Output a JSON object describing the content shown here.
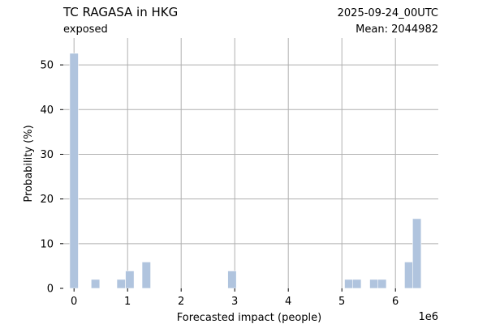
{
  "header": {
    "title": "TC RAGASA in HKG",
    "subtitle": "exposed",
    "run_label": "2025-09-24_00UTC",
    "run_color": "#ff0000",
    "mean_label": "Mean: 2044982"
  },
  "chart_data": {
    "type": "bar",
    "xlabel": "Forecasted impact (people)",
    "ylabel": "Probability (%)",
    "x_offset_label": "1e6",
    "xlim": [
      -0.2,
      6.8
    ],
    "ylim": [
      0,
      56
    ],
    "xticks": [
      0,
      1,
      2,
      3,
      4,
      5,
      6
    ],
    "yticks": [
      0,
      10,
      20,
      30,
      40,
      50
    ],
    "grid": true,
    "bar_color": "#b0c4de",
    "bin_width": 0.16,
    "bars": [
      {
        "x": 0.0,
        "value": 52.6
      },
      {
        "x": 0.4,
        "value": 2.0
      },
      {
        "x": 0.88,
        "value": 2.0
      },
      {
        "x": 1.04,
        "value": 3.9
      },
      {
        "x": 1.35,
        "value": 5.9
      },
      {
        "x": 2.95,
        "value": 3.9
      },
      {
        "x": 5.13,
        "value": 2.0
      },
      {
        "x": 5.28,
        "value": 2.0
      },
      {
        "x": 5.6,
        "value": 2.0
      },
      {
        "x": 5.75,
        "value": 2.0
      },
      {
        "x": 6.25,
        "value": 5.9
      },
      {
        "x": 6.4,
        "value": 15.6
      }
    ]
  }
}
